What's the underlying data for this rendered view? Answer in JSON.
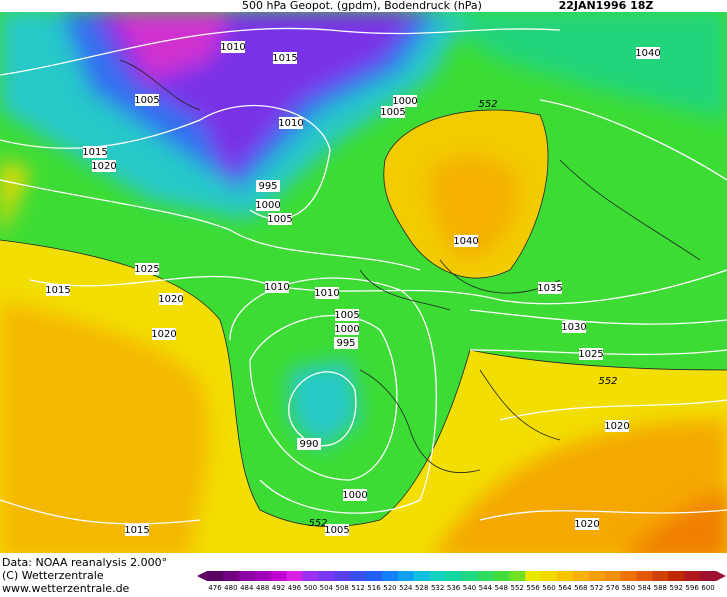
{
  "header": {
    "title": "500 hPa Geopot. (gpdm), Bodendruck (hPa)",
    "date": "22JAN1996 18Z"
  },
  "isobar_labels": [
    "1010",
    "1015",
    "1005",
    "1000",
    "1005",
    "552",
    "1040",
    "1015",
    "1020",
    "1010",
    "995",
    "1000",
    "1005",
    "1040",
    "1025",
    "1015",
    "1020",
    "1010",
    "1010",
    "1035",
    "1005",
    "1000",
    "995",
    "1030",
    "1020",
    "1025",
    "552",
    "1020",
    "990",
    "1000",
    "1015",
    "1020",
    "552",
    "1005"
  ],
  "footer": {
    "source": "Data: NOAA reanalysis 2.000°",
    "copyright": "(C) Wetterzentrale",
    "url": "www.wetterzentrale.de"
  },
  "legend": {
    "labels": [
      "476",
      "480",
      "484",
      "488",
      "492",
      "496",
      "500",
      "504",
      "508",
      "512",
      "516",
      "520",
      "524",
      "528",
      "532",
      "536",
      "540",
      "544",
      "548",
      "552",
      "556",
      "560",
      "564",
      "568",
      "572",
      "576",
      "580",
      "584",
      "588",
      "592",
      "596",
      "600"
    ]
  }
}
